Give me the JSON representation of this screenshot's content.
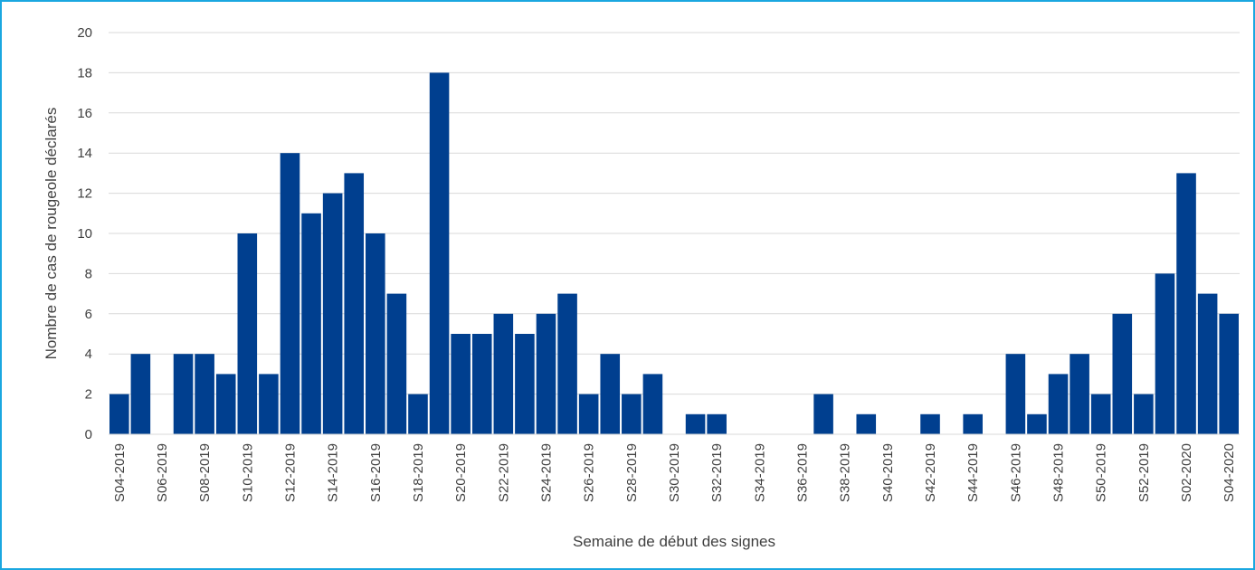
{
  "chart_data": {
    "type": "bar",
    "x_label": "Semaine de début des signes",
    "y_label": "Nombre de cas de rougeole déclarés",
    "categories": [
      "S04-2019",
      null,
      "S06-2019",
      null,
      "S08-2019",
      null,
      "S10-2019",
      null,
      "S12-2019",
      null,
      "S14-2019",
      null,
      "S16-2019",
      null,
      "S18-2019",
      null,
      "S20-2019",
      null,
      "S22-2019",
      null,
      "S24-2019",
      null,
      "S26-2019",
      null,
      "S28-2019",
      null,
      "S30-2019",
      null,
      "S32-2019",
      null,
      "S34-2019",
      null,
      "S36-2019",
      null,
      "S38-2019",
      null,
      "S40-2019",
      null,
      "S42-2019",
      null,
      "S44-2019",
      null,
      "S46-2019",
      null,
      "S48-2019",
      null,
      "S50-2019",
      null,
      "S52-2019",
      null,
      "S02-2020",
      null,
      "S04-2020"
    ],
    "values": [
      2,
      4,
      0,
      4,
      4,
      3,
      10,
      3,
      14,
      11,
      12,
      13,
      10,
      7,
      2,
      18,
      5,
      5,
      6,
      5,
      6,
      7,
      2,
      4,
      2,
      3,
      0,
      1,
      1,
      0,
      0,
      0,
      0,
      2,
      0,
      1,
      0,
      0,
      1,
      0,
      1,
      0,
      4,
      1,
      3,
      4,
      2,
      6,
      2,
      8,
      13,
      7,
      6
    ],
    "color": "#003f8f",
    "ylim": [
      0,
      20
    ],
    "yticks": [
      0,
      2,
      4,
      6,
      8,
      10,
      12,
      14,
      16,
      18,
      20
    ],
    "grid": true
  }
}
